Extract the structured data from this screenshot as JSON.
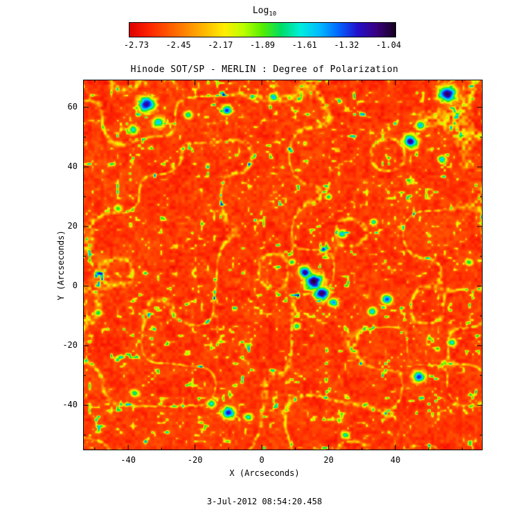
{
  "figure": {
    "background": "#ffffff",
    "colorbar": {
      "title_main": "Log",
      "title_sub": "10",
      "tick_labels": [
        "-2.73",
        "-2.45",
        "-2.17",
        "-1.89",
        "-1.61",
        "-1.32",
        "-1.04"
      ]
    },
    "title": "Hinode SOT/SP - MERLIN : Degree of Polarization",
    "x_axis": {
      "label": "X (Arcseconds)",
      "tick_labels": [
        "-40",
        "-20",
        "0",
        "20",
        "40"
      ]
    },
    "y_axis": {
      "label": "Y (Arcseconds)",
      "tick_labels": [
        "60",
        "40",
        "20",
        "0",
        "-20",
        "-40"
      ]
    },
    "timestamp": "3-Jul-2012 08:54:20.458"
  },
  "chart_data": {
    "type": "heatmap",
    "title": "Hinode SOT/SP - MERLIN : Degree of Polarization",
    "xlabel": "X (Arcseconds)",
    "ylabel": "Y (Arcseconds)",
    "xlim": [
      -53.5,
      66.1
    ],
    "ylim": [
      -55.1,
      69.3
    ],
    "x_ticks": [
      -40,
      -20,
      0,
      20,
      40
    ],
    "y_ticks": [
      60,
      40,
      20,
      0,
      -20,
      -40
    ],
    "minor_tick_step": 10,
    "grid": false,
    "legend": "colorbar-top",
    "value_quantity": "log10 degree of polarization",
    "value_range": [
      -2.73,
      -1.04
    ],
    "colorbar_tick_values": [
      -2.73,
      -2.45,
      -2.17,
      -1.89,
      -1.61,
      -1.32,
      -1.04
    ],
    "dominant_background_value": -2.55,
    "colormap": [
      "#dd0000",
      "#ff2200",
      "#ff5500",
      "#ff8800",
      "#ffbb00",
      "#ffee00",
      "#bbff00",
      "#55ee00",
      "#00dd66",
      "#00eedd",
      "#00bbff",
      "#0066ff",
      "#2211cc",
      "#3a0080",
      "#15001f"
    ],
    "features_format": [
      "x_arcsec",
      "y_arcsec",
      "radius_arcsec",
      "peak_log10_polarization"
    ],
    "features": [
      [
        15.5,
        1.5,
        3.2,
        -1.05
      ],
      [
        13.0,
        4.5,
        2.2,
        -1.15
      ],
      [
        18.0,
        -2.5,
        2.6,
        -1.1
      ],
      [
        21.5,
        -5.5,
        1.8,
        -1.45
      ],
      [
        24.0,
        17.5,
        1.5,
        -1.5
      ],
      [
        9.0,
        8.0,
        1.2,
        -1.7
      ],
      [
        -34.5,
        61.0,
        3.0,
        -1.2
      ],
      [
        -31.0,
        55.0,
        2.2,
        -1.55
      ],
      [
        -38.5,
        52.5,
        1.8,
        -1.6
      ],
      [
        -22.0,
        57.5,
        1.6,
        -1.65
      ],
      [
        -10.5,
        59.0,
        1.8,
        -1.3
      ],
      [
        3.5,
        63.5,
        1.6,
        -1.5
      ],
      [
        44.5,
        48.5,
        2.6,
        -1.15
      ],
      [
        47.5,
        54.0,
        1.8,
        -1.5
      ],
      [
        55.5,
        64.5,
        3.2,
        -1.1
      ],
      [
        54.0,
        42.5,
        1.6,
        -1.55
      ],
      [
        37.5,
        -4.5,
        2.0,
        -1.35
      ],
      [
        33.0,
        -8.5,
        1.6,
        -1.55
      ],
      [
        -10.0,
        -42.5,
        2.4,
        -1.25
      ],
      [
        -15.0,
        -39.5,
        1.6,
        -1.6
      ],
      [
        -4.0,
        -44.0,
        1.5,
        -1.6
      ],
      [
        47.0,
        -30.5,
        2.2,
        -1.3
      ],
      [
        57.0,
        -19.0,
        1.6,
        -1.6
      ],
      [
        10.5,
        -13.5,
        1.3,
        -1.65
      ],
      [
        -43.0,
        26.0,
        1.5,
        -1.8
      ],
      [
        33.5,
        21.5,
        1.3,
        -1.6
      ],
      [
        -49.0,
        -9.0,
        1.5,
        -1.75
      ],
      [
        20.0,
        30.0,
        1.2,
        -1.7
      ],
      [
        -38.0,
        -36.0,
        1.6,
        -1.7
      ],
      [
        25.0,
        -50.0,
        1.5,
        -1.65
      ],
      [
        62.0,
        8.0,
        1.4,
        -1.75
      ]
    ]
  }
}
